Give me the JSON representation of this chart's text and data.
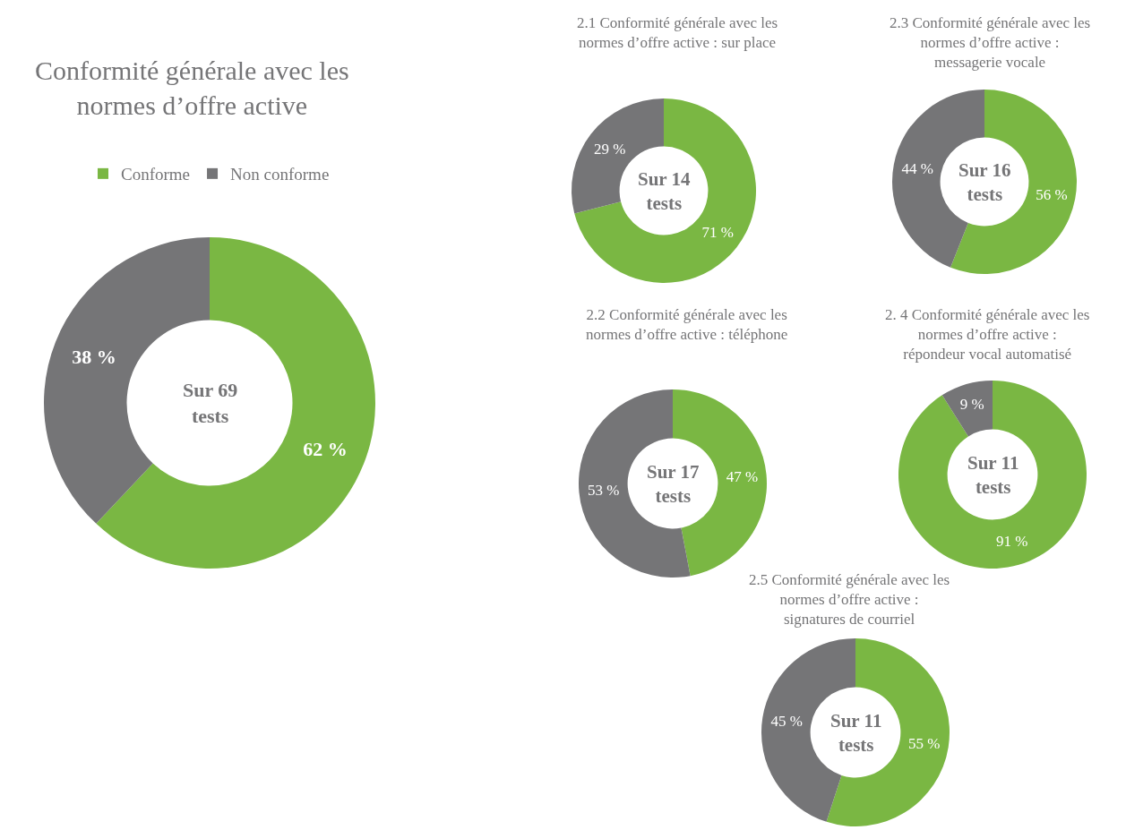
{
  "chart_data": [
    {
      "type": "donut",
      "title": "Conformité générale avec les\nnormes d’offre active",
      "categories": [
        "Conforme",
        "Non conforme"
      ],
      "values": [
        62,
        38
      ],
      "value_labels": [
        "62 %",
        "38 %"
      ],
      "colors": [
        "#7ab743",
        "#757577"
      ],
      "legend": "top",
      "annotations": [
        "Sur 69\ntests"
      ]
    },
    {
      "type": "donut",
      "title": "2.1 Conformité générale avec les\nnormes d’offre active : sur place",
      "categories": [
        null,
        null
      ],
      "values": [
        71,
        29
      ],
      "value_labels": [
        "71 %",
        "29 %"
      ],
      "colors": [
        "#7ab743",
        "#757577"
      ],
      "annotations": [
        "Sur 14\ntests"
      ]
    },
    {
      "type": "donut",
      "title": "2.3 Conformité générale avec les\nnormes d’offre active :\nmessagerie vocale",
      "categories": [
        null,
        null
      ],
      "values": [
        56,
        44
      ],
      "value_labels": [
        "56 %",
        "44 %"
      ],
      "colors": [
        "#7ab743",
        "#757577"
      ],
      "annotations": [
        "Sur 16\ntests"
      ]
    },
    {
      "type": "donut",
      "title": "2.2 Conformité générale avec les\nnormes d’offre active : téléphone",
      "categories": [
        null,
        null
      ],
      "values": [
        47,
        53
      ],
      "value_labels": [
        "47 %",
        "53 %"
      ],
      "colors": [
        "#7ab743",
        "#757577"
      ],
      "annotations": [
        "Sur 17\ntests"
      ]
    },
    {
      "type": "donut",
      "title": "2. 4 Conformité générale avec les\nnormes d’offre active :\nrépondeur vocal automatisé",
      "categories": [
        null,
        null
      ],
      "values": [
        91,
        9
      ],
      "value_labels": [
        "91 %",
        "9 %"
      ],
      "colors": [
        "#7ab743",
        "#757577"
      ],
      "annotations": [
        "Sur 11\ntests"
      ]
    },
    {
      "type": "donut",
      "title": "2.5 Conformité générale avec les\nnormes d’offre active :\nsignatures de courriel",
      "categories": [
        null,
        null
      ],
      "values": [
        55,
        45
      ],
      "value_labels": [
        "55 %",
        "45 %"
      ],
      "colors": [
        "#7ab743",
        "#757577"
      ],
      "annotations": [
        "Sur 11\ntests"
      ]
    }
  ]
}
